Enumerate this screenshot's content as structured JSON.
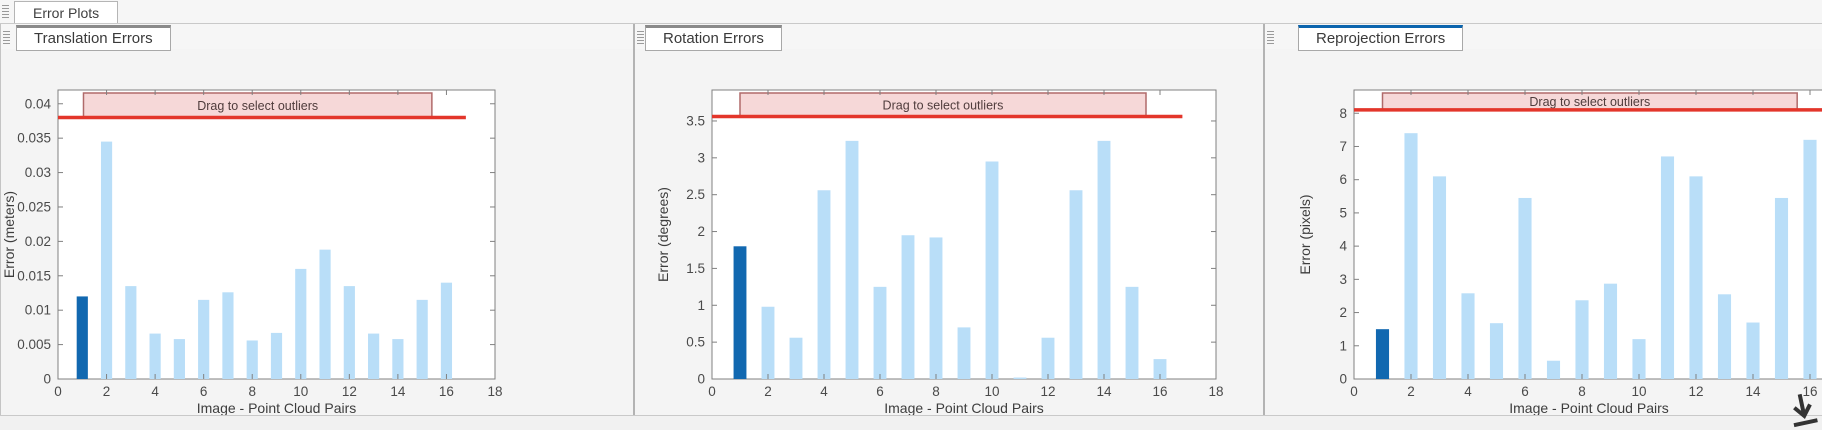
{
  "app": {
    "top_tab": "Error Plots"
  },
  "colors": {
    "bar_light": "#b9def8",
    "bar_dark": "#1168b0",
    "threshold_line": "#e3362b",
    "band_fill": "#f6d8d8",
    "band_border": "#b06a6a",
    "band_text": "#4f3c3c",
    "axis_border": "#808080",
    "tick_text": "#4a4a4a",
    "active_tab_accent": "#0b64ad",
    "inactive_tab_accent": "#8a8a8a"
  },
  "panels": [
    {
      "title": "Translation Errors",
      "active": false
    },
    {
      "title": "Rotation Errors",
      "active": false
    },
    {
      "title": "Reprojection Errors",
      "active": true
    }
  ],
  "chart_data": [
    {
      "type": "bar",
      "title": "Translation Errors",
      "xlabel": "Image - Point Cloud Pairs",
      "ylabel": "Error (meters)",
      "x": [
        1,
        2,
        3,
        4,
        5,
        6,
        7,
        8,
        9,
        10,
        11,
        12,
        13,
        14,
        15,
        16
      ],
      "values": [
        0.012,
        0.0345,
        0.0135,
        0.0066,
        0.0058,
        0.0115,
        0.0126,
        0.0056,
        0.0067,
        0.016,
        0.0188,
        0.0135,
        0.0066,
        0.0058,
        0.0115,
        0.014
      ],
      "highlight_index": 0,
      "threshold": 0.038,
      "band_label": "Drag to select outliers",
      "band_x": [
        1.05,
        15.4
      ],
      "threshold_line_x": [
        0,
        16.8
      ],
      "xlim": [
        0,
        18
      ],
      "ylim": [
        0,
        0.042
      ],
      "xticks": [
        0,
        2,
        4,
        6,
        8,
        10,
        12,
        14,
        16,
        18
      ],
      "yticks": [
        0,
        0.005,
        0.01,
        0.015,
        0.02,
        0.025,
        0.03,
        0.035,
        0.04
      ],
      "ytick_labels": [
        "0",
        "0.005",
        "0.01",
        "0.015",
        "0.02",
        "0.025",
        "0.03",
        "0.035",
        "0.04"
      ],
      "grid": false,
      "legend": null
    },
    {
      "type": "bar",
      "title": "Rotation Errors",
      "xlabel": "Image - Point Cloud Pairs",
      "ylabel": "Error (degrees)",
      "x": [
        1,
        2,
        3,
        4,
        5,
        6,
        7,
        8,
        9,
        10,
        11,
        12,
        13,
        14,
        15,
        16
      ],
      "values": [
        1.8,
        0.98,
        0.56,
        2.56,
        3.23,
        1.25,
        1.95,
        1.92,
        0.7,
        2.95,
        0.02,
        0.56,
        2.56,
        3.23,
        1.25,
        0.27
      ],
      "highlight_index": 0,
      "threshold": 3.56,
      "band_label": "Drag to select outliers",
      "band_x": [
        1.0,
        15.5
      ],
      "threshold_line_x": [
        0,
        16.8
      ],
      "xlim": [
        0,
        18
      ],
      "ylim": [
        0,
        3.92
      ],
      "xticks": [
        0,
        2,
        4,
        6,
        8,
        10,
        12,
        14,
        16,
        18
      ],
      "yticks": [
        0,
        0.5,
        1,
        1.5,
        2,
        2.5,
        3,
        3.5
      ],
      "ytick_labels": [
        "0",
        "0.5",
        "1",
        "1.5",
        "2",
        "2.5",
        "3",
        "3.5"
      ],
      "grid": false,
      "legend": null
    },
    {
      "type": "bar",
      "title": "Reprojection Errors",
      "xlabel": "Image - Point Cloud Pairs",
      "ylabel": "Error (pixels)",
      "x": [
        1,
        2,
        3,
        4,
        5,
        6,
        7,
        8,
        9,
        10,
        11,
        12,
        13,
        14,
        15,
        16
      ],
      "values": [
        1.5,
        7.4,
        6.1,
        2.58,
        1.68,
        5.45,
        0.55,
        2.37,
        2.87,
        1.2,
        6.7,
        6.1,
        2.55,
        1.7,
        5.45,
        7.2
      ],
      "highlight_index": 0,
      "threshold": 8.1,
      "band_label": "Drag to select outliers",
      "band_x": [
        1.0,
        15.55
      ],
      "threshold_line_x": [
        0,
        19
      ],
      "xlim": [
        0,
        18
      ],
      "ylim": [
        0,
        8.7
      ],
      "xticks": [
        0,
        2,
        4,
        6,
        8,
        10,
        12,
        14,
        16,
        18
      ],
      "yticks": [
        0,
        1,
        2,
        3,
        4,
        5,
        6,
        7,
        8
      ],
      "ytick_labels": [
        "0",
        "1",
        "2",
        "3",
        "4",
        "5",
        "6",
        "7",
        "8"
      ],
      "grid": false,
      "legend": null
    }
  ]
}
